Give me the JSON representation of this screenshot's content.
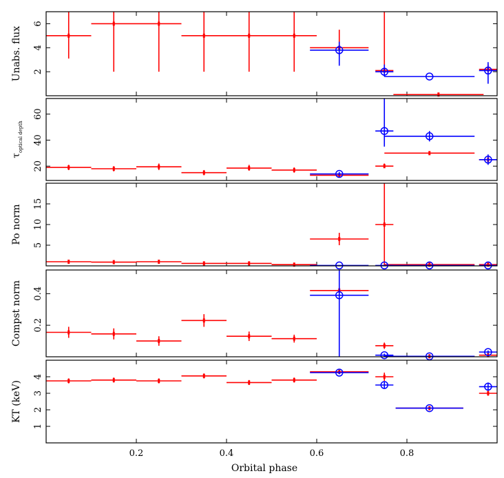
{
  "chart_data": {
    "type": "scatter",
    "xlabel": "Orbital phase",
    "xlim": [
      0,
      1
    ],
    "xticks": [
      0.2,
      0.4,
      0.6,
      0.8
    ],
    "xtick_labels": [
      "0.2",
      "0.4",
      "0.6",
      "0.8"
    ],
    "colors": {
      "series_red": "#ff0000",
      "series_blue": "#0000ff"
    },
    "panels": [
      {
        "ylabel": "Unabs. flux",
        "ylabel_sub": "",
        "ylim": [
          0,
          7
        ],
        "yticks": [
          2,
          4,
          6
        ],
        "ytick_labels": [
          "2",
          "4",
          "6"
        ],
        "series": [
          {
            "name": "red",
            "marker": "cross",
            "points": [
              {
                "x": 0.05,
                "xerr": 0.05,
                "y": 5.0,
                "ylo": 3.1,
                "yhi": 7.0
              },
              {
                "x": 0.15,
                "xerr": 0.05,
                "y": 6.0,
                "ylo": 2.0,
                "yhi": 7.0
              },
              {
                "x": 0.25,
                "xerr": 0.05,
                "y": 6.0,
                "ylo": 2.0,
                "yhi": 7.0
              },
              {
                "x": 0.35,
                "xerr": 0.05,
                "y": 5.0,
                "ylo": 2.0,
                "yhi": 7.0
              },
              {
                "x": 0.45,
                "xerr": 0.05,
                "y": 5.0,
                "ylo": 2.0,
                "yhi": 7.0
              },
              {
                "x": 0.55,
                "xerr": 0.05,
                "y": 5.0,
                "ylo": 2.0,
                "yhi": 7.0
              },
              {
                "x": 0.65,
                "xerr": 0.065,
                "y": 4.0,
                "ylo": 3.3,
                "yhi": 5.5
              },
              {
                "x": 0.75,
                "xerr": 0.02,
                "y": 2.1,
                "ylo": 2.1,
                "yhi": 7.0
              },
              {
                "x": 0.87,
                "xerr": 0.1,
                "y": 0.1,
                "ylo": 0.1,
                "yhi": 0.1
              },
              {
                "x": 0.98,
                "xerr": 0.02,
                "y": 2.2,
                "ylo": 1.9,
                "yhi": 2.6
              }
            ]
          },
          {
            "name": "blue",
            "marker": "circle",
            "points": [
              {
                "x": 0.65,
                "xerr": 0.065,
                "y": 3.8,
                "ylo": 2.5,
                "yhi": 4.5
              },
              {
                "x": 0.75,
                "xerr": 0.02,
                "y": 2.0,
                "ylo": 1.6,
                "yhi": 2.6
              },
              {
                "x": 0.85,
                "xerr": 0.1,
                "y": 1.6,
                "ylo": 1.6,
                "yhi": 1.6
              },
              {
                "x": 0.98,
                "xerr": 0.02,
                "y": 2.1,
                "ylo": 1.0,
                "yhi": 2.8
              }
            ]
          }
        ]
      },
      {
        "ylabel": "τ",
        "ylabel_sub": "optical depth",
        "ylim": [
          9,
          72
        ],
        "yticks": [
          20,
          40,
          60
        ],
        "ytick_labels": [
          "20",
          "40",
          "60"
        ],
        "series": [
          {
            "name": "red",
            "marker": "cross",
            "points": [
              {
                "x": 0.05,
                "xerr": 0.05,
                "y": 19,
                "ylo": 17,
                "yhi": 21
              },
              {
                "x": 0.15,
                "xerr": 0.05,
                "y": 18,
                "ylo": 16,
                "yhi": 20
              },
              {
                "x": 0.25,
                "xerr": 0.05,
                "y": 19.5,
                "ylo": 17,
                "yhi": 22
              },
              {
                "x": 0.35,
                "xerr": 0.05,
                "y": 15,
                "ylo": 13,
                "yhi": 17
              },
              {
                "x": 0.45,
                "xerr": 0.05,
                "y": 18.5,
                "ylo": 16.5,
                "yhi": 21
              },
              {
                "x": 0.55,
                "xerr": 0.05,
                "y": 17,
                "ylo": 15,
                "yhi": 19
              },
              {
                "x": 0.65,
                "xerr": 0.065,
                "y": 13,
                "ylo": 12,
                "yhi": 14
              },
              {
                "x": 0.75,
                "xerr": 0.02,
                "y": 20,
                "ylo": 18.5,
                "yhi": 22
              },
              {
                "x": 0.85,
                "xerr": 0.1,
                "y": 30,
                "ylo": 29,
                "yhi": 31
              },
              {
                "x": 0.98,
                "xerr": 0.02,
                "y": 25,
                "ylo": 23,
                "yhi": 27
              }
            ]
          },
          {
            "name": "blue",
            "marker": "circle",
            "points": [
              {
                "x": 0.65,
                "xerr": 0.065,
                "y": 14,
                "ylo": 12.5,
                "yhi": 15.5
              },
              {
                "x": 0.75,
                "xerr": 0.02,
                "y": 47,
                "ylo": 35,
                "yhi": 72
              },
              {
                "x": 0.85,
                "xerr": 0.1,
                "y": 43,
                "ylo": 39,
                "yhi": 47
              },
              {
                "x": 0.98,
                "xerr": 0.02,
                "y": 25,
                "ylo": 21,
                "yhi": 29
              }
            ]
          }
        ]
      },
      {
        "ylabel": "Po norm",
        "ylabel_sub": "",
        "ylim": [
          0,
          20
        ],
        "yticks": [
          5,
          10,
          15
        ],
        "ytick_labels": [
          "5",
          "10",
          "15"
        ],
        "series": [
          {
            "name": "red",
            "marker": "cross",
            "points": [
              {
                "x": 0.05,
                "xerr": 0.05,
                "y": 1.0,
                "ylo": 0.6,
                "yhi": 1.4
              },
              {
                "x": 0.15,
                "xerr": 0.05,
                "y": 0.9,
                "ylo": 0.5,
                "yhi": 1.3
              },
              {
                "x": 0.25,
                "xerr": 0.05,
                "y": 1.0,
                "ylo": 0.6,
                "yhi": 1.4
              },
              {
                "x": 0.35,
                "xerr": 0.05,
                "y": 0.6,
                "ylo": 0.3,
                "yhi": 0.9
              },
              {
                "x": 0.45,
                "xerr": 0.05,
                "y": 0.6,
                "ylo": 0.3,
                "yhi": 0.9
              },
              {
                "x": 0.55,
                "xerr": 0.05,
                "y": 0.3,
                "ylo": 0.1,
                "yhi": 0.6
              },
              {
                "x": 0.65,
                "xerr": 0.065,
                "y": 6.5,
                "ylo": 5.0,
                "yhi": 8.0
              },
              {
                "x": 0.75,
                "xerr": 0.02,
                "y": 10,
                "ylo": 0.1,
                "yhi": 20
              },
              {
                "x": 0.85,
                "xerr": 0.1,
                "y": 0.3,
                "ylo": 0.2,
                "yhi": 0.4
              },
              {
                "x": 0.98,
                "xerr": 0.02,
                "y": 0.3,
                "ylo": 0.2,
                "yhi": 0.4
              }
            ]
          },
          {
            "name": "blue",
            "marker": "circle",
            "points": [
              {
                "x": 0.65,
                "xerr": 0.065,
                "y": 0.1,
                "ylo": 0.1,
                "yhi": 0.1
              },
              {
                "x": 0.75,
                "xerr": 0.02,
                "y": 0.1,
                "ylo": 0.1,
                "yhi": 0.1
              },
              {
                "x": 0.85,
                "xerr": 0.1,
                "y": 0.1,
                "ylo": 0.1,
                "yhi": 0.1
              },
              {
                "x": 0.98,
                "xerr": 0.02,
                "y": 0.1,
                "ylo": 0.1,
                "yhi": 0.1
              }
            ]
          }
        ]
      },
      {
        "ylabel": "Compst norm",
        "ylabel_sub": "",
        "ylim": [
          0,
          0.55
        ],
        "yticks": [
          0.2,
          0.4
        ],
        "ytick_labels": [
          "0.2",
          "0.4"
        ],
        "series": [
          {
            "name": "red",
            "marker": "cross",
            "points": [
              {
                "x": 0.05,
                "xerr": 0.05,
                "y": 0.155,
                "ylo": 0.12,
                "yhi": 0.19
              },
              {
                "x": 0.15,
                "xerr": 0.05,
                "y": 0.145,
                "ylo": 0.11,
                "yhi": 0.18
              },
              {
                "x": 0.25,
                "xerr": 0.05,
                "y": 0.1,
                "ylo": 0.07,
                "yhi": 0.13
              },
              {
                "x": 0.35,
                "xerr": 0.05,
                "y": 0.23,
                "ylo": 0.19,
                "yhi": 0.27
              },
              {
                "x": 0.45,
                "xerr": 0.05,
                "y": 0.13,
                "ylo": 0.1,
                "yhi": 0.16
              },
              {
                "x": 0.55,
                "xerr": 0.05,
                "y": 0.115,
                "ylo": 0.09,
                "yhi": 0.14
              },
              {
                "x": 0.65,
                "xerr": 0.065,
                "y": 0.42,
                "ylo": 0.4,
                "yhi": 0.44
              },
              {
                "x": 0.75,
                "xerr": 0.02,
                "y": 0.07,
                "ylo": 0.05,
                "yhi": 0.09
              },
              {
                "x": 0.85,
                "xerr": 0.1,
                "y": 0.003,
                "ylo": 0.0,
                "yhi": 0.006
              },
              {
                "x": 0.98,
                "xerr": 0.02,
                "y": 0.01,
                "ylo": 0.0,
                "yhi": 0.02
              }
            ]
          },
          {
            "name": "blue",
            "marker": "circle",
            "points": [
              {
                "x": 0.65,
                "xerr": 0.065,
                "y": 0.39,
                "ylo": 0.0,
                "yhi": 0.55
              },
              {
                "x": 0.75,
                "xerr": 0.02,
                "y": 0.01,
                "ylo": 0.0,
                "yhi": 0.02
              },
              {
                "x": 0.85,
                "xerr": 0.1,
                "y": 0.003,
                "ylo": 0.0,
                "yhi": 0.006
              },
              {
                "x": 0.98,
                "xerr": 0.02,
                "y": 0.03,
                "ylo": 0.02,
                "yhi": 0.04
              }
            ]
          }
        ]
      },
      {
        "ylabel": "KT (keV)",
        "ylabel_sub": "",
        "ylim": [
          0,
          5
        ],
        "yticks": [
          1,
          2,
          3,
          4
        ],
        "ytick_labels": [
          "1",
          "2",
          "3",
          "4"
        ],
        "series": [
          {
            "name": "red",
            "marker": "cross",
            "points": [
              {
                "x": 0.05,
                "xerr": 0.05,
                "y": 3.75,
                "ylo": 3.6,
                "yhi": 3.9
              },
              {
                "x": 0.15,
                "xerr": 0.05,
                "y": 3.8,
                "ylo": 3.65,
                "yhi": 3.95
              },
              {
                "x": 0.25,
                "xerr": 0.05,
                "y": 3.75,
                "ylo": 3.6,
                "yhi": 3.9
              },
              {
                "x": 0.35,
                "xerr": 0.05,
                "y": 4.05,
                "ylo": 3.9,
                "yhi": 4.2
              },
              {
                "x": 0.45,
                "xerr": 0.05,
                "y": 3.65,
                "ylo": 3.5,
                "yhi": 3.8
              },
              {
                "x": 0.55,
                "xerr": 0.05,
                "y": 3.8,
                "ylo": 3.65,
                "yhi": 3.95
              },
              {
                "x": 0.65,
                "xerr": 0.065,
                "y": 4.3,
                "ylo": 4.2,
                "yhi": 4.4
              },
              {
                "x": 0.75,
                "xerr": 0.02,
                "y": 4.0,
                "ylo": 3.75,
                "yhi": 4.25
              },
              {
                "x": 0.85,
                "xerr": 0.075,
                "y": 2.1,
                "ylo": 2.05,
                "yhi": 2.15
              },
              {
                "x": 0.98,
                "xerr": 0.02,
                "y": 3.0,
                "ylo": 2.85,
                "yhi": 3.15
              }
            ]
          },
          {
            "name": "blue",
            "marker": "circle",
            "points": [
              {
                "x": 0.65,
                "xerr": 0.065,
                "y": 4.25,
                "ylo": 4.15,
                "yhi": 4.35
              },
              {
                "x": 0.75,
                "xerr": 0.02,
                "y": 3.5,
                "ylo": 3.3,
                "yhi": 3.7
              },
              {
                "x": 0.85,
                "xerr": 0.075,
                "y": 2.1,
                "ylo": 2.05,
                "yhi": 2.15
              },
              {
                "x": 0.98,
                "xerr": 0.02,
                "y": 3.4,
                "ylo": 3.15,
                "yhi": 3.65
              }
            ]
          }
        ]
      }
    ]
  }
}
